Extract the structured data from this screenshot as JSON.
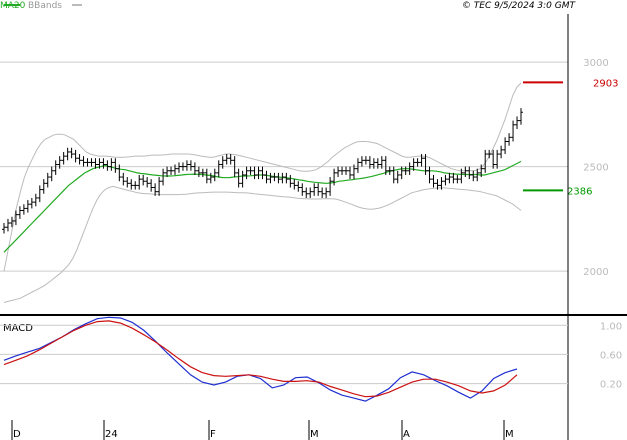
{
  "header": {
    "legend": [
      {
        "label": "MA20",
        "color": "#22aa22"
      },
      {
        "label": "BBands",
        "color": "#bbbbbb"
      }
    ],
    "copyright": "© TEC 9/5/2024 3:0 GMT"
  },
  "colors": {
    "price": "#000000",
    "ma20": "#22aa22",
    "bbands": "#bbbbbb",
    "macd": "#1f2fd0",
    "signal": "#cc1111",
    "resistance": "#cc0000",
    "support": "#009900",
    "grid": "#cccccc",
    "axis": "#000000"
  },
  "chart_data": [
    {
      "type": "line",
      "panel": "price",
      "ylim": [
        1790,
        3230
      ],
      "yticks": [
        2000,
        2500,
        3000
      ],
      "ytick_labels": [
        "2000",
        "2500",
        "3000"
      ],
      "levels": [
        {
          "name": "resistance",
          "value": 2903,
          "label": "2903"
        },
        {
          "name": "support",
          "value": 2386,
          "label": "2386"
        }
      ],
      "ohlc_close": [
        2210,
        2230,
        2240,
        2270,
        2290,
        2300,
        2320,
        2330,
        2350,
        2390,
        2420,
        2450,
        2480,
        2510,
        2530,
        2550,
        2570,
        2560,
        2540,
        2530,
        2520,
        2520,
        2520,
        2510,
        2520,
        2510,
        2500,
        2520,
        2490,
        2450,
        2430,
        2420,
        2410,
        2410,
        2440,
        2430,
        2420,
        2400,
        2380,
        2430,
        2470,
        2480,
        2480,
        2490,
        2500,
        2500,
        2510,
        2500,
        2480,
        2470,
        2470,
        2440,
        2450,
        2470,
        2510,
        2530,
        2540,
        2530,
        2470,
        2420,
        2460,
        2480,
        2480,
        2460,
        2480,
        2460,
        2440,
        2450,
        2450,
        2440,
        2450,
        2440,
        2420,
        2410,
        2400,
        2380,
        2370,
        2380,
        2400,
        2380,
        2370,
        2380,
        2430,
        2470,
        2480,
        2480,
        2480,
        2460,
        2490,
        2520,
        2530,
        2530,
        2510,
        2520,
        2510,
        2530,
        2480,
        2480,
        2440,
        2460,
        2480,
        2480,
        2500,
        2520,
        2520,
        2540,
        2480,
        2440,
        2420,
        2410,
        2430,
        2440,
        2450,
        2440,
        2440,
        2470,
        2480,
        2460,
        2450,
        2470,
        2490,
        2560,
        2560,
        2510,
        2560,
        2580,
        2620,
        2640,
        2700,
        2720,
        2760
      ],
      "ma20": [
        2090,
        2110,
        2130,
        2150,
        2170,
        2190,
        2210,
        2230,
        2250,
        2270,
        2290,
        2310,
        2330,
        2350,
        2370,
        2390,
        2410,
        2425,
        2440,
        2455,
        2470,
        2480,
        2490,
        2495,
        2500,
        2505,
        2500,
        2495,
        2490,
        2487,
        2485,
        2480,
        2475,
        2470,
        2467,
        2465,
        2462,
        2460,
        2458,
        2456,
        2455,
        2455,
        2456,
        2458,
        2460,
        2462,
        2463,
        2464,
        2463,
        2462,
        2460,
        2458,
        2455,
        2450,
        2448,
        2447,
        2448,
        2450,
        2452,
        2455,
        2455,
        2456,
        2458,
        2460,
        2460,
        2458,
        2455,
        2452,
        2450,
        2448,
        2446,
        2444,
        2440,
        2437,
        2434,
        2430,
        2427,
        2425,
        2423,
        2421,
        2420,
        2422,
        2425,
        2430,
        2432,
        2435,
        2437,
        2440,
        2442,
        2445,
        2449,
        2453,
        2458,
        2463,
        2468,
        2475,
        2480,
        2484,
        2488,
        2490,
        2490,
        2488,
        2485,
        2482,
        2480,
        2480,
        2480,
        2478,
        2475,
        2470,
        2468,
        2465,
        2464,
        2463,
        2462,
        2462,
        2462,
        2462,
        2460,
        2460,
        2465,
        2470,
        2475,
        2480,
        2485,
        2495,
        2505,
        2515,
        2525
      ],
      "bb_upper": [
        2000,
        2100,
        2200,
        2300,
        2380,
        2450,
        2500,
        2540,
        2580,
        2610,
        2630,
        2640,
        2650,
        2655,
        2655,
        2650,
        2640,
        2630,
        2610,
        2590,
        2570,
        2560,
        2555,
        2550,
        2550,
        2550,
        2548,
        2545,
        2545,
        2545,
        2546,
        2548,
        2550,
        2550,
        2550,
        2552,
        2555,
        2555,
        2555,
        2556,
        2558,
        2560,
        2560,
        2560,
        2560,
        2560,
        2558,
        2555,
        2550,
        2548,
        2545,
        2545,
        2550,
        2555,
        2560,
        2560,
        2558,
        2555,
        2550,
        2545,
        2540,
        2535,
        2530,
        2525,
        2520,
        2515,
        2510,
        2505,
        2500,
        2495,
        2490,
        2485,
        2480,
        2478,
        2478,
        2480,
        2485,
        2495,
        2510,
        2525,
        2545,
        2560,
        2575,
        2590,
        2600,
        2610,
        2618,
        2620,
        2620,
        2618,
        2615,
        2610,
        2600,
        2590,
        2580,
        2570,
        2560,
        2550,
        2545,
        2545,
        2548,
        2550,
        2550,
        2548,
        2540,
        2530,
        2520,
        2510,
        2500,
        2490,
        2485,
        2480,
        2480,
        2480,
        2480,
        2482,
        2490,
        2510,
        2540,
        2580,
        2620,
        2670,
        2720,
        2780,
        2840,
        2880,
        2900
      ],
      "bb_lower": [
        1850,
        1855,
        1860,
        1865,
        1870,
        1880,
        1890,
        1900,
        1910,
        1920,
        1930,
        1945,
        1960,
        1975,
        1990,
        2010,
        2030,
        2060,
        2100,
        2150,
        2200,
        2250,
        2300,
        2340,
        2370,
        2390,
        2400,
        2405,
        2400,
        2395,
        2390,
        2385,
        2380,
        2375,
        2372,
        2370,
        2370,
        2368,
        2367,
        2366,
        2366,
        2366,
        2366,
        2366,
        2367,
        2368,
        2370,
        2372,
        2374,
        2375,
        2376,
        2377,
        2378,
        2378,
        2378,
        2378,
        2377,
        2376,
        2375,
        2375,
        2374,
        2372,
        2370,
        2368,
        2366,
        2364,
        2362,
        2360,
        2358,
        2356,
        2355,
        2353,
        2350,
        2348,
        2347,
        2346,
        2345,
        2345,
        2345,
        2346,
        2347,
        2346,
        2345,
        2340,
        2334,
        2327,
        2320,
        2312,
        2305,
        2300,
        2297,
        2296,
        2298,
        2302,
        2308,
        2316,
        2325,
        2335,
        2345,
        2355,
        2365,
        2375,
        2380,
        2385,
        2390,
        2393,
        2395,
        2397,
        2398,
        2398,
        2396,
        2395,
        2393,
        2391,
        2390,
        2388,
        2385,
        2383,
        2380,
        2375,
        2370,
        2365,
        2360,
        2350,
        2340,
        2330,
        2320,
        2305,
        2290
      ]
    },
    {
      "type": "line",
      "panel": "macd",
      "title": "MACD",
      "ylim": [
        -0.3,
        1.1
      ],
      "yticks": [
        1.0,
        0.6,
        0.2
      ],
      "ytick_labels": [
        "1.00",
        "0.60",
        "0.20"
      ],
      "series": [
        {
          "key": "macd",
          "values": [
            0.52,
            0.58,
            0.63,
            0.68,
            0.76,
            0.84,
            0.94,
            1.02,
            1.09,
            1.11,
            1.1,
            1.04,
            0.93,
            0.78,
            0.62,
            0.47,
            0.32,
            0.22,
            0.18,
            0.22,
            0.3,
            0.32,
            0.27,
            0.14,
            0.18,
            0.28,
            0.29,
            0.21,
            0.11,
            0.04,
            0.0,
            -0.04,
            0.04,
            0.13,
            0.28,
            0.36,
            0.32,
            0.24,
            0.17,
            0.08,
            0.0,
            0.1,
            0.27,
            0.35,
            0.4
          ]
        },
        {
          "key": "signal",
          "values": [
            0.46,
            0.52,
            0.58,
            0.66,
            0.75,
            0.84,
            0.93,
            1.0,
            1.05,
            1.06,
            1.03,
            0.96,
            0.87,
            0.77,
            0.66,
            0.54,
            0.43,
            0.35,
            0.31,
            0.3,
            0.31,
            0.32,
            0.3,
            0.26,
            0.23,
            0.23,
            0.24,
            0.22,
            0.16,
            0.11,
            0.06,
            0.02,
            0.03,
            0.08,
            0.15,
            0.22,
            0.26,
            0.26,
            0.22,
            0.17,
            0.1,
            0.07,
            0.1,
            0.18,
            0.32
          ]
        }
      ]
    }
  ],
  "x_axis": {
    "labels": [
      "D",
      "24",
      "F",
      "M",
      "A",
      "M"
    ]
  }
}
